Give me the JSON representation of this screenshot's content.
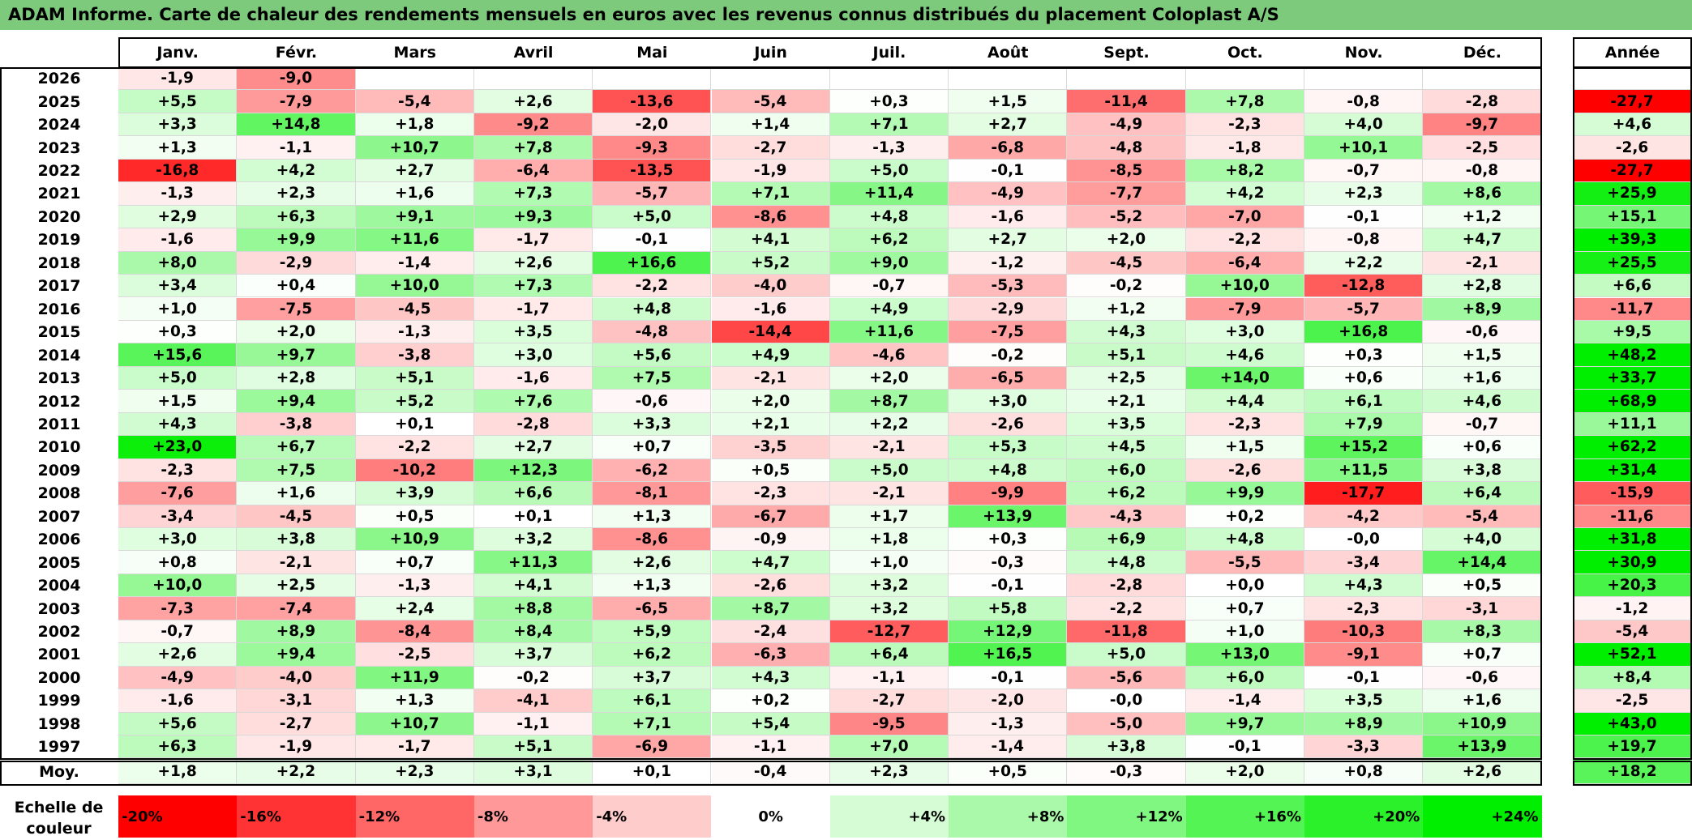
{
  "title": "ADAM Informe. Carte de chaleur des rendements mensuels en euros avec les revenus connus distribués du placement Coloplast A/S",
  "chart_data": {
    "type": "heatmap",
    "title": "ADAM Informe. Carte de chaleur des rendements mensuels en euros avec les revenus connus distribués du placement Coloplast A/S",
    "months": [
      "Janv.",
      "Févr.",
      "Mars",
      "Avril",
      "Mai",
      "Juin",
      "Juil.",
      "Août",
      "Sept.",
      "Oct.",
      "Nov.",
      "Déc."
    ],
    "annual_header": "Année",
    "rows": [
      {
        "year": "2026",
        "values": [
          "-1,9",
          "-9,0",
          "",
          "",
          "",
          "",
          "",
          "",
          "",
          "",
          "",
          ""
        ],
        "annual": ""
      },
      {
        "year": "2025",
        "values": [
          "+5,5",
          "-7,9",
          "-5,4",
          "+2,6",
          "-13,6",
          "-5,4",
          "+0,3",
          "+1,5",
          "-11,4",
          "+7,8",
          "-0,8",
          "-2,8"
        ],
        "annual": "-27,7"
      },
      {
        "year": "2024",
        "values": [
          "+3,3",
          "+14,8",
          "+1,8",
          "-9,2",
          "-2,0",
          "+1,4",
          "+7,1",
          "+2,7",
          "-4,9",
          "-2,3",
          "+4,0",
          "-9,7"
        ],
        "annual": "+4,6"
      },
      {
        "year": "2023",
        "values": [
          "+1,3",
          "-1,1",
          "+10,7",
          "+7,8",
          "-9,3",
          "-2,7",
          "-1,3",
          "-6,8",
          "-4,8",
          "-1,8",
          "+10,1",
          "-2,5"
        ],
        "annual": "-2,6"
      },
      {
        "year": "2022",
        "values": [
          "-16,8",
          "+4,2",
          "+2,7",
          "-6,4",
          "-13,5",
          "-1,9",
          "+5,0",
          "-0,1",
          "-8,5",
          "+8,2",
          "-0,7",
          "-0,8"
        ],
        "annual": "-27,7"
      },
      {
        "year": "2021",
        "values": [
          "-1,3",
          "+2,3",
          "+1,6",
          "+7,3",
          "-5,7",
          "+7,1",
          "+11,4",
          "-4,9",
          "-7,7",
          "+4,2",
          "+2,3",
          "+8,6"
        ],
        "annual": "+25,9"
      },
      {
        "year": "2020",
        "values": [
          "+2,9",
          "+6,3",
          "+9,1",
          "+9,3",
          "+5,0",
          "-8,6",
          "+4,8",
          "-1,6",
          "-5,2",
          "-7,0",
          "-0,1",
          "+1,2"
        ],
        "annual": "+15,1"
      },
      {
        "year": "2019",
        "values": [
          "-1,6",
          "+9,9",
          "+11,6",
          "-1,7",
          "-0,1",
          "+4,1",
          "+6,2",
          "+2,7",
          "+2,0",
          "-2,2",
          "-0,8",
          "+4,7"
        ],
        "annual": "+39,3"
      },
      {
        "year": "2018",
        "values": [
          "+8,0",
          "-2,9",
          "-1,4",
          "+2,6",
          "+16,6",
          "+5,2",
          "+9,0",
          "-1,2",
          "-4,5",
          "-6,4",
          "+2,2",
          "-2,1"
        ],
        "annual": "+25,5"
      },
      {
        "year": "2017",
        "values": [
          "+3,4",
          "+0,4",
          "+10,0",
          "+7,3",
          "-2,2",
          "-4,0",
          "-0,7",
          "-5,3",
          "-0,2",
          "+10,0",
          "-12,8",
          "+2,8"
        ],
        "annual": "+6,6"
      },
      {
        "year": "2016",
        "values": [
          "+1,0",
          "-7,5",
          "-4,5",
          "-1,7",
          "+4,8",
          "-1,6",
          "+4,9",
          "-2,9",
          "+1,2",
          "-7,9",
          "-5,7",
          "+8,9"
        ],
        "annual": "-11,7"
      },
      {
        "year": "2015",
        "values": [
          "+0,3",
          "+2,0",
          "-1,3",
          "+3,5",
          "-4,8",
          "-14,4",
          "+11,6",
          "-7,5",
          "+4,3",
          "+3,0",
          "+16,8",
          "-0,6"
        ],
        "annual": "+9,5"
      },
      {
        "year": "2014",
        "values": [
          "+15,6",
          "+9,7",
          "-3,8",
          "+3,0",
          "+5,6",
          "+4,9",
          "-4,6",
          "-0,2",
          "+5,1",
          "+4,6",
          "+0,3",
          "+1,5"
        ],
        "annual": "+48,2"
      },
      {
        "year": "2013",
        "values": [
          "+5,0",
          "+2,8",
          "+5,1",
          "-1,6",
          "+7,5",
          "-2,1",
          "+2,0",
          "-6,5",
          "+2,5",
          "+14,0",
          "+0,6",
          "+1,6"
        ],
        "annual": "+33,7"
      },
      {
        "year": "2012",
        "values": [
          "+1,5",
          "+9,4",
          "+5,2",
          "+7,6",
          "-0,6",
          "+2,0",
          "+8,7",
          "+3,0",
          "+2,1",
          "+4,4",
          "+6,1",
          "+4,6"
        ],
        "annual": "+68,9"
      },
      {
        "year": "2011",
        "values": [
          "+4,3",
          "-3,8",
          "+0,1",
          "-2,8",
          "+3,3",
          "+2,1",
          "+2,2",
          "-2,6",
          "+3,5",
          "-2,3",
          "+7,9",
          "-0,7"
        ],
        "annual": "+11,1"
      },
      {
        "year": "2010",
        "values": [
          "+23,0",
          "+6,7",
          "-2,2",
          "+2,7",
          "+0,7",
          "-3,5",
          "-2,1",
          "+5,3",
          "+4,5",
          "+1,5",
          "+15,2",
          "+0,6"
        ],
        "annual": "+62,2"
      },
      {
        "year": "2009",
        "values": [
          "-2,3",
          "+7,5",
          "-10,2",
          "+12,3",
          "-6,2",
          "+0,5",
          "+5,0",
          "+4,8",
          "+6,0",
          "-2,6",
          "+11,5",
          "+3,8"
        ],
        "annual": "+31,4"
      },
      {
        "year": "2008",
        "values": [
          "-7,6",
          "+1,6",
          "+3,9",
          "+6,6",
          "-8,1",
          "-2,3",
          "-2,1",
          "-9,9",
          "+6,2",
          "+9,9",
          "-17,7",
          "+6,4"
        ],
        "annual": "-15,9"
      },
      {
        "year": "2007",
        "values": [
          "-3,4",
          "-4,5",
          "+0,5",
          "+0,1",
          "+1,3",
          "-6,7",
          "+1,7",
          "+13,9",
          "-4,3",
          "+0,2",
          "-4,2",
          "-5,4"
        ],
        "annual": "-11,6"
      },
      {
        "year": "2006",
        "values": [
          "+3,0",
          "+3,8",
          "+10,9",
          "+3,2",
          "-8,6",
          "-0,9",
          "+1,8",
          "+0,3",
          "+6,9",
          "+4,8",
          "-0,0",
          "+4,0"
        ],
        "annual": "+31,8"
      },
      {
        "year": "2005",
        "values": [
          "+0,8",
          "-2,1",
          "+0,7",
          "+11,3",
          "+2,6",
          "+4,7",
          "+1,0",
          "-0,3",
          "+4,8",
          "-5,5",
          "-3,4",
          "+14,4"
        ],
        "annual": "+30,9"
      },
      {
        "year": "2004",
        "values": [
          "+10,0",
          "+2,5",
          "-1,3",
          "+4,1",
          "+1,3",
          "-2,6",
          "+3,2",
          "-0,1",
          "-2,8",
          "+0,0",
          "+4,3",
          "+0,5"
        ],
        "annual": "+20,3"
      },
      {
        "year": "2003",
        "values": [
          "-7,3",
          "-7,4",
          "+2,4",
          "+8,8",
          "-6,5",
          "+8,7",
          "+3,2",
          "+5,8",
          "-2,2",
          "+0,7",
          "-2,3",
          "-3,1"
        ],
        "annual": "-1,2"
      },
      {
        "year": "2002",
        "values": [
          "-0,7",
          "+8,9",
          "-8,4",
          "+8,4",
          "+5,9",
          "-2,4",
          "-12,7",
          "+12,9",
          "-11,8",
          "+1,0",
          "-10,3",
          "+8,3"
        ],
        "annual": "-5,4"
      },
      {
        "year": "2001",
        "values": [
          "+2,6",
          "+9,4",
          "-2,5",
          "+3,7",
          "+6,2",
          "-6,3",
          "+6,4",
          "+16,5",
          "+5,0",
          "+13,0",
          "-9,1",
          "+0,7"
        ],
        "annual": "+52,1"
      },
      {
        "year": "2000",
        "values": [
          "-4,9",
          "-4,0",
          "+11,9",
          "-0,2",
          "+3,7",
          "+4,3",
          "-1,1",
          "-0,1",
          "-5,6",
          "+6,0",
          "-0,1",
          "-0,6"
        ],
        "annual": "+8,4"
      },
      {
        "year": "1999",
        "values": [
          "-1,6",
          "-3,1",
          "+1,3",
          "-4,1",
          "+6,1",
          "+0,2",
          "-2,7",
          "-2,0",
          "-0,0",
          "-1,4",
          "+3,5",
          "+1,6"
        ],
        "annual": "-2,5"
      },
      {
        "year": "1998",
        "values": [
          "+5,6",
          "-2,7",
          "+10,7",
          "-1,1",
          "+7,1",
          "+5,4",
          "-9,5",
          "-1,3",
          "-5,0",
          "+9,7",
          "+8,9",
          "+10,9"
        ],
        "annual": "+43,0"
      },
      {
        "year": "1997",
        "values": [
          "+6,3",
          "-1,9",
          "-1,7",
          "+5,1",
          "-6,9",
          "-1,1",
          "+7,0",
          "-1,4",
          "+3,8",
          "-0,1",
          "-3,3",
          "+13,9"
        ],
        "annual": "+19,7"
      }
    ],
    "average": {
      "label": "Moy.",
      "values": [
        "+1,8",
        "+2,2",
        "+2,3",
        "+3,1",
        "+0,1",
        "-0,4",
        "+2,3",
        "+0,5",
        "-0,3",
        "+2,0",
        "+0,8",
        "+2,6"
      ],
      "annual": "+18,2"
    },
    "color_scale": {
      "label": "Echelle de couleur",
      "stops": [
        "-20%",
        "-16%",
        "-12%",
        "-8%",
        "-4%",
        "0%",
        "+4%",
        "+8%",
        "+12%",
        "+16%",
        "+20%",
        "+24%"
      ],
      "stop_values": [
        -20,
        -16,
        -12,
        -8,
        -4,
        0,
        4,
        8,
        12,
        16,
        20,
        24
      ]
    },
    "colors": {
      "negative": "#ff0000",
      "neutral": "#ffffff",
      "positive": "#00ee00",
      "title_bar": "#7dca7d"
    }
  }
}
